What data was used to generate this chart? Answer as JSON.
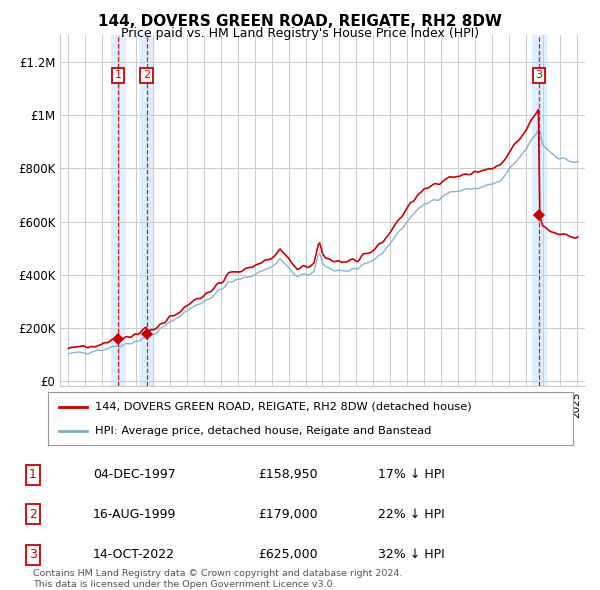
{
  "title": "144, DOVERS GREEN ROAD, REIGATE, RH2 8DW",
  "subtitle": "Price paid vs. HM Land Registry's House Price Index (HPI)",
  "ylabel_ticks": [
    0,
    200000,
    400000,
    600000,
    800000,
    1000000,
    1200000
  ],
  "ylabel_labels": [
    "£0",
    "£200K",
    "£400K",
    "£600K",
    "£800K",
    "£1M",
    "£1.2M"
  ],
  "xlim": [
    1994.5,
    2025.5
  ],
  "ylim": [
    -20000,
    1300000
  ],
  "sale_dates": [
    1997.92,
    1999.62,
    2022.79
  ],
  "sale_prices": [
    158950,
    179000,
    625000
  ],
  "sale_labels": [
    "1",
    "2",
    "3"
  ],
  "legend_red": "144, DOVERS GREEN ROAD, REIGATE, RH2 8DW (detached house)",
  "legend_blue": "HPI: Average price, detached house, Reigate and Banstead",
  "table_rows": [
    [
      "1",
      "04-DEC-1997",
      "£158,950",
      "17% ↓ HPI"
    ],
    [
      "2",
      "16-AUG-1999",
      "£179,000",
      "22% ↓ HPI"
    ],
    [
      "3",
      "14-OCT-2022",
      "£625,000",
      "32% ↓ HPI"
    ]
  ],
  "footnote1": "Contains HM Land Registry data © Crown copyright and database right 2024.",
  "footnote2": "This data is licensed under the Open Government Licence v3.0.",
  "red_color": "#cc0000",
  "blue_color": "#7aadcc",
  "grid_color": "#cccccc",
  "highlight_bg": "#ddeeff",
  "background_color": "#ffffff"
}
